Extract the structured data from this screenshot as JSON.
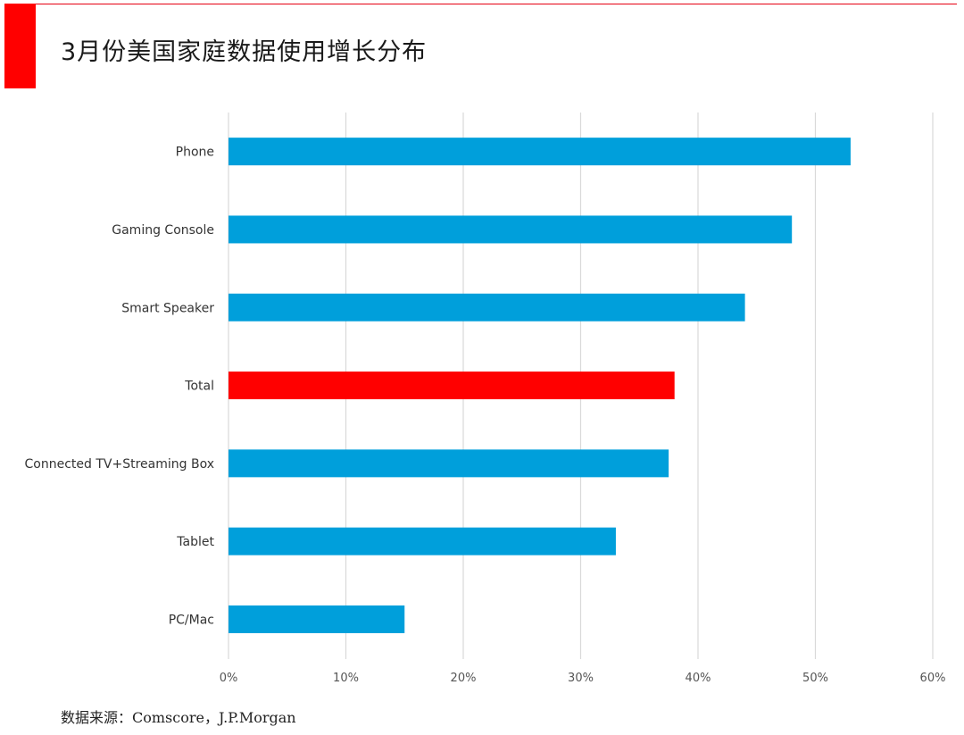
{
  "header": {
    "title": "3月份美国家庭数据使用增长分布"
  },
  "footer": {
    "source": "数据来源：Comscore，J.P.Morgan"
  },
  "colors": {
    "bar": "#009fdb",
    "highlight": "#ff0000",
    "accent_block": "#ff0000",
    "grid": "#d9d9d9"
  },
  "chart_data": {
    "type": "bar",
    "orientation": "horizontal",
    "categories": [
      "Phone",
      "Gaming Console",
      "Smart Speaker",
      "Total",
      "Connected TV+Streaming Box",
      "Tablet",
      "PC/Mac"
    ],
    "values": [
      0.53,
      0.48,
      0.44,
      0.38,
      0.375,
      0.33,
      0.15
    ],
    "highlight_category": "Total",
    "xlim": [
      0,
      0.6
    ],
    "xticks": [
      "0%",
      "10%",
      "20%",
      "30%",
      "40%",
      "50%",
      "60%"
    ],
    "grid": "vertical",
    "title": "",
    "xlabel": "",
    "ylabel": ""
  }
}
